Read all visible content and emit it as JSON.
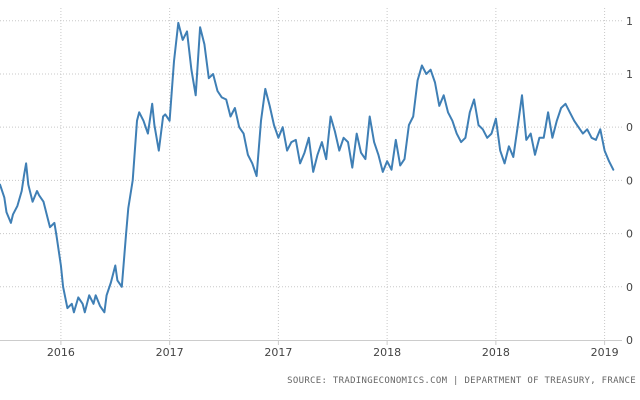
{
  "source": "SOURCE: TRADINGECONOMICS.COM | DEPARTMENT OF TREASURY, FRANCE",
  "colors": {
    "line": "#3f7fb5",
    "grid": "#c8c8c8",
    "axis": "#cccccc",
    "text": "#444444"
  },
  "chart_data": {
    "type": "line",
    "title": "",
    "xlabel": "",
    "ylabel": "",
    "grid": true,
    "x_tick_labels": [
      {
        "x": 2015.75,
        "label": "2016"
      },
      {
        "x": 2016.25,
        "label": "2017"
      },
      {
        "x": 2016.75,
        "label": "2017"
      },
      {
        "x": 2017.25,
        "label": "2018"
      },
      {
        "x": 2017.75,
        "label": "2018"
      },
      {
        "x": 2018.25,
        "label": "2019"
      }
    ],
    "y_tick_labels": [
      {
        "y": 1.25,
        "label": "1"
      },
      {
        "y": 1.0,
        "label": "1"
      },
      {
        "y": 0.75,
        "label": "0"
      },
      {
        "y": 0.5,
        "label": "0"
      },
      {
        "y": 0.25,
        "label": "0"
      },
      {
        "y": 0.0,
        "label": "0"
      },
      {
        "y": -0.25,
        "label": "0"
      }
    ],
    "xlim": [
      2015.47,
      2018.33
    ],
    "ylim": [
      -0.25,
      1.31
    ],
    "series": [
      {
        "x": [
          2015.47,
          2015.49,
          2015.5,
          2015.52,
          2015.53,
          2015.55,
          2015.57,
          2015.58,
          2015.59,
          2015.6,
          2015.62,
          2015.64,
          2015.65,
          2015.67,
          2015.69,
          2015.7,
          2015.72,
          2015.73,
          2015.75,
          2015.76,
          2015.78,
          2015.8,
          2015.81,
          2015.83,
          2015.85,
          2015.86,
          2015.88,
          2015.9,
          2015.91,
          2015.93,
          2015.95,
          2015.96,
          2015.98,
          2016.0,
          2016.01,
          2016.03,
          2016.05,
          2016.06,
          2016.08,
          2016.1,
          2016.11,
          2016.13,
          2016.15,
          2016.17,
          2016.18,
          2016.2,
          2016.22,
          2016.23,
          2016.25,
          2016.27,
          2016.29,
          2016.31,
          2016.33,
          2016.35,
          2016.37,
          2016.39,
          2016.41,
          2016.43,
          2016.45,
          2016.47,
          2016.49,
          2016.51,
          2016.53,
          2016.55,
          2016.57,
          2016.59,
          2016.61,
          2016.63,
          2016.65,
          2016.67,
          2016.69,
          2016.71,
          2016.73,
          2016.75,
          2016.77,
          2016.79,
          2016.81,
          2016.83,
          2016.85,
          2016.87,
          2016.89,
          2016.91,
          2016.93,
          2016.95,
          2016.97,
          2016.99,
          2017.01,
          2017.03,
          2017.05,
          2017.07,
          2017.09,
          2017.11,
          2017.13,
          2017.15,
          2017.17,
          2017.19,
          2017.21,
          2017.23,
          2017.25,
          2017.27,
          2017.29,
          2017.31,
          2017.33,
          2017.35,
          2017.37,
          2017.39,
          2017.41,
          2017.43,
          2017.45,
          2017.47,
          2017.49,
          2017.51,
          2017.53,
          2017.55,
          2017.57,
          2017.59,
          2017.61,
          2017.63,
          2017.65,
          2017.67,
          2017.69,
          2017.71,
          2017.73,
          2017.75,
          2017.77,
          2017.79,
          2017.81,
          2017.83,
          2017.85,
          2017.87,
          2017.89,
          2017.91,
          2017.93,
          2017.95,
          2017.97,
          2017.99,
          2018.01,
          2018.03,
          2018.05,
          2018.07,
          2018.09,
          2018.11,
          2018.13,
          2018.15,
          2018.17,
          2018.19,
          2018.21,
          2018.23,
          2018.25,
          2018.27,
          2018.29
        ],
        "values": [
          0.48,
          0.42,
          0.35,
          0.3,
          0.34,
          0.38,
          0.45,
          0.52,
          0.58,
          0.48,
          0.4,
          0.45,
          0.43,
          0.4,
          0.32,
          0.28,
          0.3,
          0.24,
          0.1,
          0.0,
          -0.1,
          -0.08,
          -0.12,
          -0.05,
          -0.08,
          -0.12,
          -0.04,
          -0.08,
          -0.04,
          -0.09,
          -0.12,
          -0.04,
          0.02,
          0.1,
          0.03,
          0.0,
          0.25,
          0.37,
          0.5,
          0.78,
          0.82,
          0.78,
          0.72,
          0.86,
          0.76,
          0.64,
          0.8,
          0.81,
          0.78,
          1.06,
          1.24,
          1.16,
          1.2,
          1.02,
          0.9,
          1.22,
          1.14,
          0.98,
          1.0,
          0.92,
          0.89,
          0.88,
          0.8,
          0.84,
          0.75,
          0.72,
          0.62,
          0.58,
          0.52,
          0.78,
          0.93,
          0.85,
          0.76,
          0.7,
          0.75,
          0.64,
          0.68,
          0.69,
          0.58,
          0.63,
          0.7,
          0.54,
          0.62,
          0.68,
          0.6,
          0.8,
          0.73,
          0.64,
          0.7,
          0.68,
          0.56,
          0.72,
          0.63,
          0.6,
          0.8,
          0.68,
          0.62,
          0.54,
          0.59,
          0.55,
          0.69,
          0.57,
          0.6,
          0.76,
          0.8,
          0.97,
          1.04,
          1.0,
          1.02,
          0.96,
          0.85,
          0.9,
          0.82,
          0.78,
          0.72,
          0.68,
          0.7,
          0.82,
          0.88,
          0.76,
          0.74,
          0.7,
          0.72,
          0.79,
          0.64,
          0.58,
          0.66,
          0.61,
          0.75,
          0.9,
          0.69,
          0.72,
          0.62,
          0.7,
          0.7,
          0.82,
          0.7,
          0.78,
          0.84,
          0.86,
          0.82,
          0.78,
          0.75,
          0.72,
          0.74,
          0.7,
          0.69,
          0.74,
          0.64,
          0.59,
          0.55
        ]
      }
    ]
  }
}
